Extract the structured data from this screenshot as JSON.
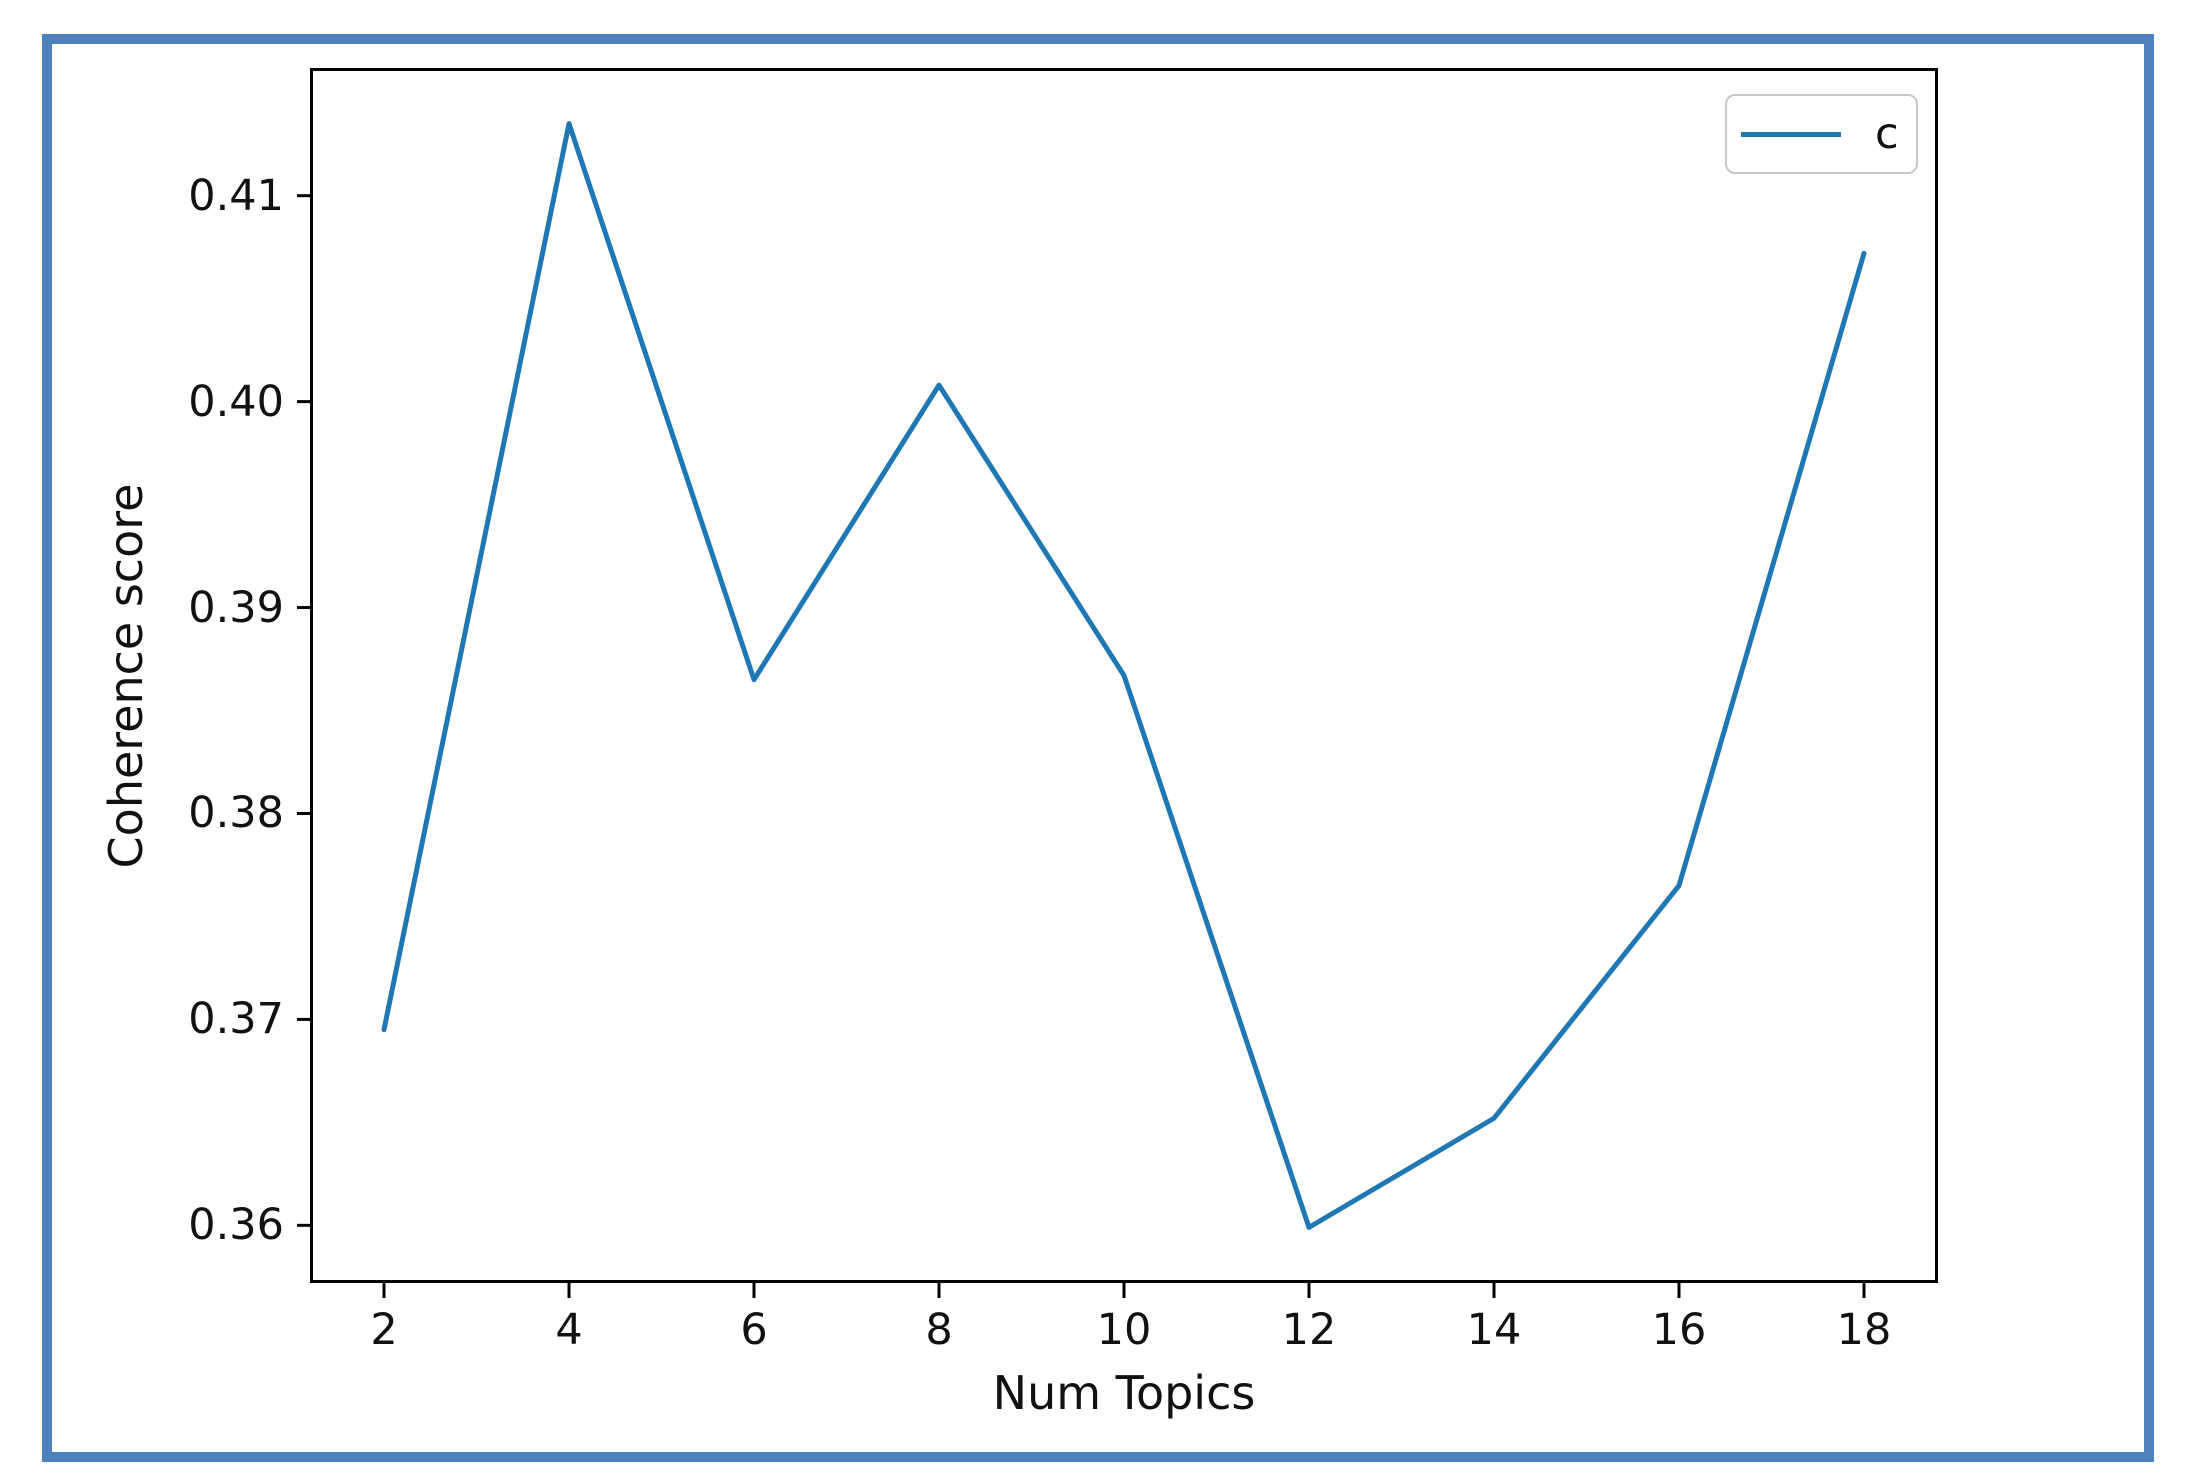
{
  "figure": {
    "border_color": "#4e81bd",
    "background_color": "#ffffff",
    "text_color": "#111111",
    "spine_color": "#000000",
    "legend_edge_color": "#c8c8c8"
  },
  "chart_data": {
    "type": "line",
    "title": "",
    "xlabel": "Num Topics",
    "ylabel": "Coherence score",
    "x": [
      2,
      4,
      6,
      8,
      10,
      12,
      14,
      16,
      18
    ],
    "series": [
      {
        "name": "c",
        "color": "#1f77b4",
        "values": [
          0.3695,
          0.4135,
          0.3865,
          0.4008,
          0.3867,
          0.3599,
          0.3652,
          0.3765,
          0.4072
        ]
      }
    ],
    "xlim": [
      1.2,
      18.8
    ],
    "ylim": [
      0.3572,
      0.4162
    ],
    "x_ticks": [
      2,
      4,
      6,
      8,
      10,
      12,
      14,
      16,
      18
    ],
    "x_tick_labels": [
      "2",
      "4",
      "6",
      "8",
      "10",
      "12",
      "14",
      "16",
      "18"
    ],
    "y_ticks": [
      0.36,
      0.37,
      0.38,
      0.39,
      0.4,
      0.41
    ],
    "y_tick_labels": [
      "0.36",
      "0.37",
      "0.38",
      "0.39",
      "0.40",
      "0.41"
    ],
    "grid": false,
    "legend": {
      "position": "upper right",
      "entries": [
        {
          "label": "c",
          "color": "#1f77b4"
        }
      ]
    }
  }
}
